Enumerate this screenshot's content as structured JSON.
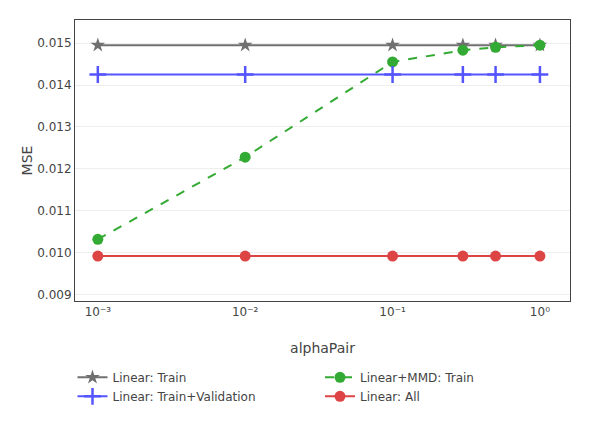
{
  "chart_data": {
    "type": "line",
    "xlabel": "alphaPair",
    "ylabel": "MSE",
    "x": [
      0.001,
      0.01,
      0.1,
      0.3,
      0.5,
      1
    ],
    "series": [
      {
        "name": "Linear: Train",
        "color": "#707070",
        "marker": "star",
        "line_style": "solid",
        "values": [
          0.01495,
          0.01495,
          0.01495,
          0.01495,
          0.01495,
          0.01495
        ]
      },
      {
        "name": "Linear+MMD: Train",
        "color": "#33aa33",
        "marker": "circle",
        "line_style": "dashed",
        "values": [
          0.01032,
          0.01228,
          0.01455,
          0.01483,
          0.0149,
          0.01495
        ]
      },
      {
        "name": "Linear: Train+Validation",
        "color": "#5555ff",
        "marker": "plus",
        "line_style": "solid",
        "values": [
          0.01425,
          0.01425,
          0.01425,
          0.01425,
          0.01425,
          0.01425
        ]
      },
      {
        "name": "Linear: All",
        "color": "#dd4444",
        "marker": "circle",
        "line_style": "solid",
        "values": [
          0.00992,
          0.00992,
          0.00992,
          0.00992,
          0.00992,
          0.00992
        ]
      }
    ],
    "log": "x",
    "xlim": [
      0.0007,
      1.6
    ],
    "ylim": [
      0.00885,
      0.01555
    ],
    "xticks": [
      {
        "value": 0.001,
        "label": "10⁻³"
      },
      {
        "value": 0.01,
        "label": "10⁻²"
      },
      {
        "value": 0.1,
        "label": "10⁻¹"
      },
      {
        "value": 1,
        "label": "10⁰"
      }
    ],
    "yticks": [
      0.009,
      {
        "value": 0.01,
        "label": "0.010"
      },
      0.011,
      0.012,
      0.013,
      0.014,
      0.015
    ],
    "grid": "y",
    "legend": "bottom"
  }
}
